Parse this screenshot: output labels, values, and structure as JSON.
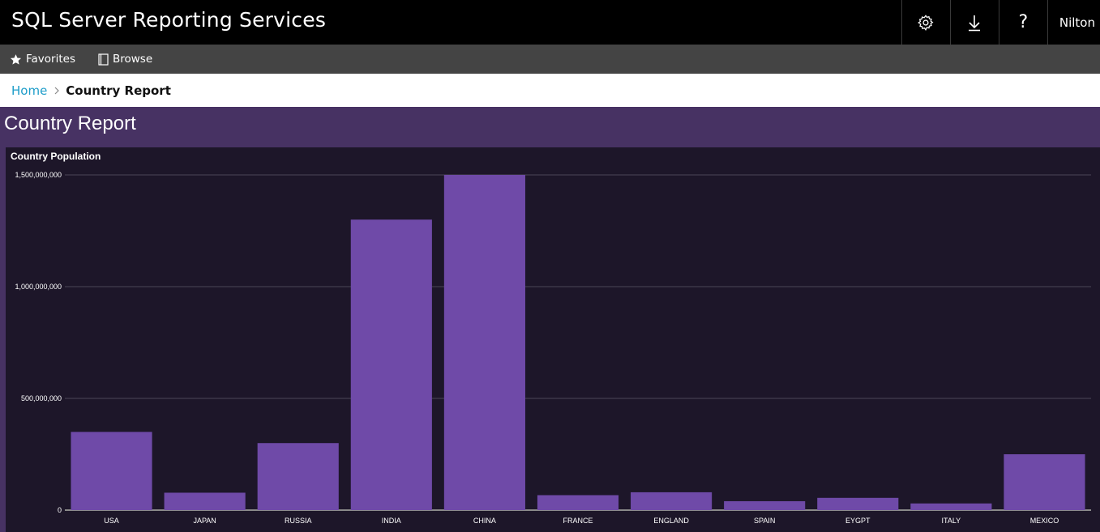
{
  "header": {
    "app_title": "SQL Server Reporting Services",
    "settings_icon": "gear-icon",
    "download_icon": "download-icon",
    "help_label": "?",
    "user_name": "Nilton"
  },
  "nav": {
    "favorites_label": "Favorites",
    "browse_label": "Browse"
  },
  "breadcrumb": {
    "home": "Home",
    "current": "Country Report"
  },
  "report": {
    "title": "Country Report"
  },
  "colors": {
    "accent_purple": "#473263",
    "bar": "#6f4aa8",
    "panel": "#1d1629",
    "link": "#1e9dc9"
  },
  "chart_data": {
    "type": "bar",
    "title": "Country Population",
    "categories": [
      "USA",
      "JAPAN",
      "RUSSIA",
      "INDIA",
      "CHINA",
      "FRANCE",
      "ENGLAND",
      "SPAIN",
      "EYGPT",
      "ITALY",
      "MEXICO"
    ],
    "values": [
      350000000,
      78000000,
      300000000,
      1300000000,
      1500000000,
      67000000,
      80000000,
      40000000,
      55000000,
      30000000,
      250000000
    ],
    "ylim": [
      0,
      1500000000
    ],
    "yticks": [
      0,
      500000000,
      1000000000,
      1500000000
    ],
    "ytick_labels": [
      "0",
      "500,000,000",
      "1,000,000,000",
      "1,500,000,000"
    ],
    "grid": true,
    "xlabel": "",
    "ylabel": ""
  }
}
